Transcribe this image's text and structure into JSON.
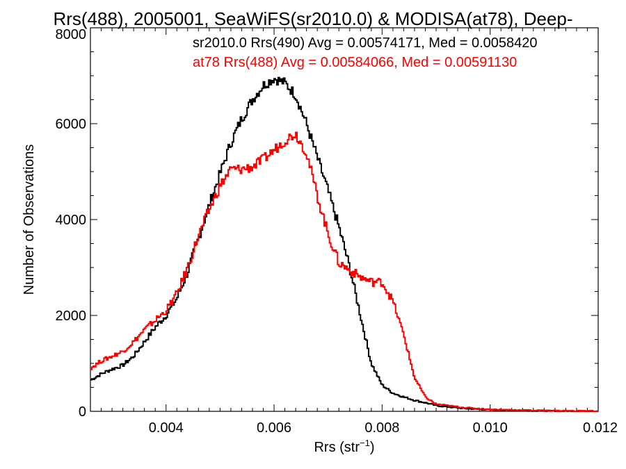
{
  "chart_data": {
    "type": "line",
    "title": "Rrs(488), 2005001, SeaWiFS(sr2010.0) & MODISA(at78), Deep-",
    "xlabel_main": "Rrs (str",
    "xlabel_sup": "−1",
    "xlabel_close": ")",
    "ylabel": "Number of Observations",
    "xlim": [
      0.0026,
      0.012
    ],
    "ylim": [
      0,
      8000
    ],
    "xticks": [
      0.004,
      0.006,
      0.008,
      0.01,
      0.012
    ],
    "xtick_labels": [
      "0.004",
      "0.006",
      "0.008",
      "0.010",
      "0.012"
    ],
    "yticks": [
      0,
      2000,
      4000,
      6000,
      8000
    ],
    "ytick_labels": [
      "0",
      "2000",
      "4000",
      "6000",
      "8000"
    ],
    "step": true,
    "annotations": [
      {
        "text": "sr2010.0 Rrs(490) Avg = 0.00574171, Med = 0.0058420",
        "color": "#000000"
      },
      {
        "text": "at78 Rrs(488) Avg = 0.00584066, Med = 0.00591130",
        "color": "#ff0000"
      }
    ],
    "series": [
      {
        "color": "#000000",
        "x": [
          0.0026,
          0.0028,
          0.003,
          0.0032,
          0.0034,
          0.0036,
          0.0038,
          0.004,
          0.0042,
          0.0044,
          0.0046,
          0.0048,
          0.005,
          0.0052,
          0.0054,
          0.0056,
          0.0058,
          0.006,
          0.0062,
          0.0064,
          0.0066,
          0.0068,
          0.007,
          0.0072,
          0.0074,
          0.0076,
          0.0078,
          0.008,
          0.0082,
          0.0084,
          0.0086,
          0.0088,
          0.009,
          0.0095,
          0.01,
          0.011,
          0.012
        ],
        "y": [
          650,
          780,
          880,
          960,
          1150,
          1450,
          1750,
          2000,
          2350,
          2900,
          3600,
          4300,
          4950,
          5600,
          6100,
          6500,
          6800,
          6950,
          6850,
          6600,
          6000,
          5300,
          4600,
          3850,
          3000,
          2000,
          1000,
          550,
          380,
          300,
          230,
          180,
          120,
          60,
          30,
          10,
          0
        ]
      },
      {
        "color": "#ff0000",
        "x": [
          0.0026,
          0.0028,
          0.003,
          0.0032,
          0.0034,
          0.0036,
          0.0038,
          0.004,
          0.0042,
          0.0044,
          0.0046,
          0.0048,
          0.005,
          0.0052,
          0.0054,
          0.0056,
          0.0058,
          0.006,
          0.0062,
          0.0064,
          0.0066,
          0.0068,
          0.007,
          0.0072,
          0.0074,
          0.0076,
          0.0078,
          0.008,
          0.0082,
          0.0084,
          0.0086,
          0.0088,
          0.009,
          0.0095,
          0.01,
          0.011,
          0.012
        ],
        "y": [
          900,
          1050,
          1150,
          1250,
          1450,
          1700,
          1900,
          2100,
          2450,
          3000,
          3650,
          4200,
          4700,
          5050,
          5050,
          5100,
          5250,
          5450,
          5650,
          5800,
          5400,
          4500,
          3700,
          3100,
          2950,
          2800,
          2700,
          2700,
          2300,
          1600,
          700,
          300,
          150,
          80,
          40,
          15,
          5
        ]
      }
    ]
  }
}
